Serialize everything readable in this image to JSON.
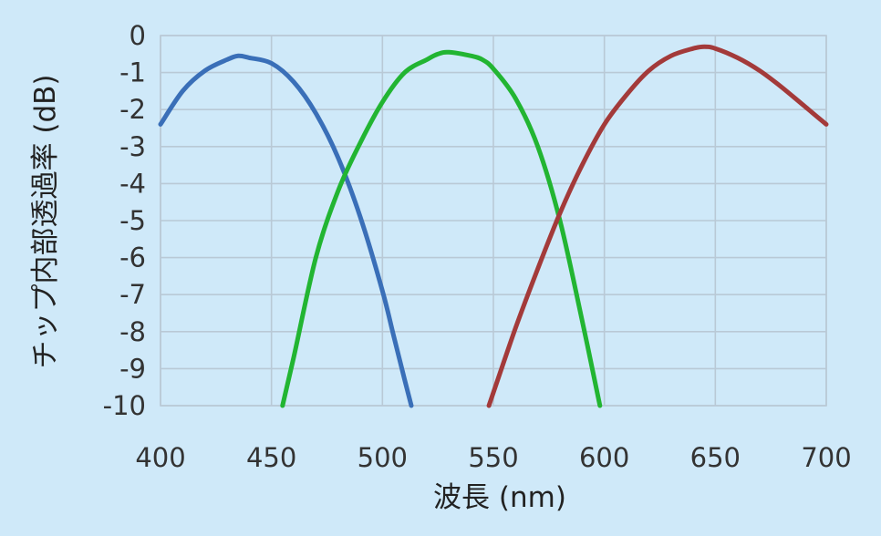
{
  "chart_data": {
    "type": "line",
    "title": "",
    "xlabel": "波長 (nm)",
    "ylabel": "チップ内部透過率 (dB)",
    "xlim": [
      400,
      700
    ],
    "ylim": [
      -10,
      0
    ],
    "x_ticks": [
      "400",
      "450",
      "500",
      "550",
      "600",
      "650",
      "700"
    ],
    "y_ticks": [
      "0",
      "-1",
      "-2",
      "-3",
      "-4",
      "-5",
      "-6",
      "-7",
      "-8",
      "-9",
      "-10"
    ],
    "grid": true,
    "legend": "none",
    "series": [
      {
        "color": "#3a6fb8",
        "x": [
          400,
          410,
          420,
          430,
          435,
          440,
          450,
          460,
          470,
          480,
          490,
          500,
          505,
          510,
          513
        ],
        "y": [
          -2.4,
          -1.5,
          -0.95,
          -0.65,
          -0.55,
          -0.6,
          -0.75,
          -1.25,
          -2.1,
          -3.3,
          -4.9,
          -6.9,
          -8.1,
          -9.3,
          -10.0
        ]
      },
      {
        "color": "#22b532",
        "x": [
          455,
          460,
          470,
          480,
          490,
          500,
          510,
          520,
          525,
          530,
          540,
          545,
          550,
          560,
          570,
          580,
          590,
          598
        ],
        "y": [
          -10.0,
          -8.7,
          -6.0,
          -4.2,
          -2.9,
          -1.8,
          -1.0,
          -0.65,
          -0.5,
          -0.45,
          -0.55,
          -0.65,
          -0.9,
          -1.7,
          -3.0,
          -5.0,
          -7.7,
          -10.0
        ]
      },
      {
        "color": "#a33a3a",
        "x": [
          548,
          560,
          570,
          580,
          590,
          600,
          610,
          620,
          630,
          640,
          645,
          650,
          660,
          670,
          680,
          690,
          700
        ],
        "y": [
          -10.0,
          -7.9,
          -6.3,
          -4.8,
          -3.5,
          -2.4,
          -1.6,
          -0.95,
          -0.55,
          -0.35,
          -0.3,
          -0.35,
          -0.6,
          -0.95,
          -1.4,
          -1.9,
          -2.4
        ]
      }
    ]
  }
}
